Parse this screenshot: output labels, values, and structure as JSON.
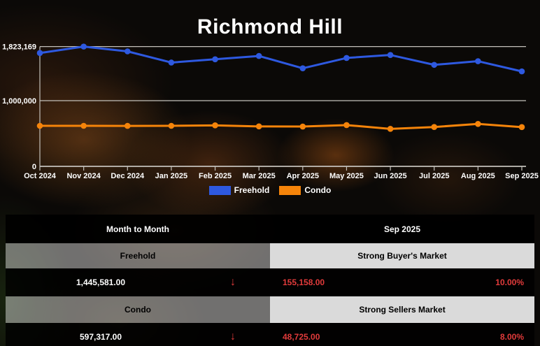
{
  "title": "Richmond Hill",
  "chart_data": {
    "type": "line",
    "categories": [
      "Oct 2024",
      "Nov 2024",
      "Dec 2024",
      "Jan 2025",
      "Feb 2025",
      "Mar 2025",
      "Apr 2025",
      "May 2025",
      "Jun 2025",
      "Jul 2025",
      "Aug 2025",
      "Sep 2025"
    ],
    "series": [
      {
        "name": "Freehold",
        "color": "#2e59e0",
        "values": [
          1725000,
          1823169,
          1750000,
          1580000,
          1630000,
          1680000,
          1493000,
          1650000,
          1695000,
          1545000,
          1600739,
          1445581
        ]
      },
      {
        "name": "Condo",
        "color": "#f5840a",
        "values": [
          617000,
          617000,
          616000,
          617000,
          624000,
          608000,
          606000,
          628000,
          571000,
          599000,
          646042,
          597317
        ]
      }
    ],
    "y_axis": {
      "ticks": [
        {
          "value": 1823169,
          "label": "1,823,169"
        },
        {
          "value": 1000000,
          "label": "1,000,000"
        },
        {
          "value": 0,
          "label": "0"
        }
      ]
    },
    "ylim": [
      0,
      1943000
    ],
    "grid": true,
    "legend_position": "bottom-center"
  },
  "table": {
    "header": {
      "left": "Month to Month",
      "right": "Sep 2025"
    },
    "sections": [
      {
        "label": "Freehold",
        "market": "Strong Buyer's Market",
        "value": "1,445,581.00",
        "arrow": "↓",
        "change": "155,158.00",
        "percent": "10.00%"
      },
      {
        "label": "Condo",
        "market": "Strong Sellers Market",
        "value": "597,317.00",
        "arrow": "↓",
        "change": "48,725.00",
        "percent": "8.00%"
      }
    ]
  },
  "colors": {
    "freehold_blue": "#2e59e0",
    "condo_orange": "#f5840a",
    "negative_red": "#e23b3b",
    "grid_line": "#c4c1bb"
  }
}
